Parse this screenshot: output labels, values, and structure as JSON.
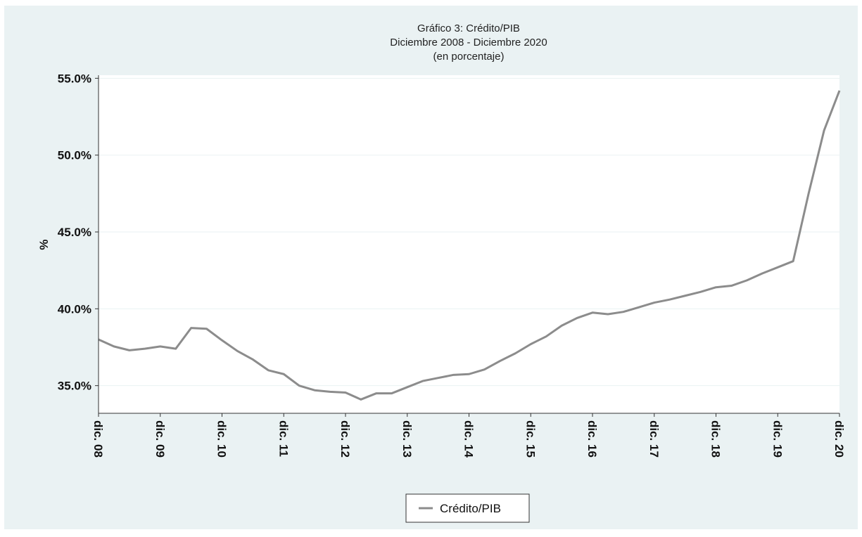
{
  "chart_data": {
    "type": "line",
    "title": "Gráfico 3: Crédito/PIB",
    "subtitle": "Diciembre 2008 - Diciembre  2020",
    "note": "(en porcentaje)",
    "y_label": "%",
    "categories": [
      "dic. 08",
      null,
      null,
      null,
      "dic. 09",
      null,
      null,
      null,
      "dic. 10",
      null,
      null,
      null,
      "dic. 11",
      null,
      null,
      null,
      "dic. 12",
      null,
      null,
      null,
      "dic. 13",
      null,
      null,
      null,
      "dic. 14",
      null,
      null,
      null,
      "dic. 15",
      null,
      null,
      null,
      "dic. 16",
      null,
      null,
      null,
      "dic. 17",
      null,
      null,
      null,
      "dic. 18",
      null,
      null,
      null,
      "dic. 19",
      null,
      null,
      null,
      "dic. 20"
    ],
    "series": [
      {
        "name": "Crédito/PIB",
        "color": "#8c8c8c",
        "values": [
          38.0,
          37.55,
          37.3,
          37.4,
          37.55,
          37.4,
          38.75,
          38.7,
          37.95,
          37.25,
          36.7,
          36.0,
          35.75,
          35.0,
          34.7,
          34.6,
          34.55,
          34.1,
          34.5,
          34.5,
          34.9,
          35.3,
          35.5,
          35.7,
          35.75,
          36.05,
          36.6,
          37.1,
          37.7,
          38.2,
          38.9,
          39.4,
          39.75,
          39.65,
          39.8,
          40.1,
          40.4,
          40.6,
          40.85,
          41.1,
          41.4,
          41.5,
          41.85,
          42.3,
          42.7,
          43.1,
          47.5,
          51.6,
          54.2
        ]
      }
    ],
    "ylim": [
      33.2,
      55.2
    ],
    "yticks": [
      {
        "value": 35,
        "label": "35.0%"
      },
      {
        "value": 40,
        "label": "40.0%"
      },
      {
        "value": 45,
        "label": "45.0%"
      },
      {
        "value": 50,
        "label": "50.0%"
      },
      {
        "value": 55,
        "label": "55.0%"
      }
    ],
    "grid": true
  }
}
